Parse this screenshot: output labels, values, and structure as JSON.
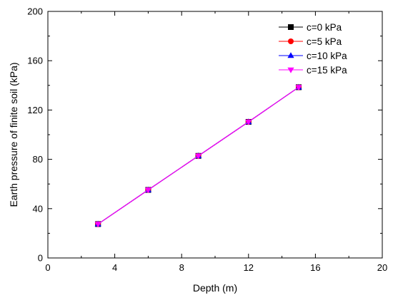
{
  "chart_data": {
    "type": "line",
    "xlabel": "Depth (m)",
    "ylabel": "Earth pressure of finite soil (kPa)",
    "xlim": [
      0,
      20
    ],
    "ylim": [
      0,
      200
    ],
    "xticks": [
      0,
      4,
      8,
      12,
      16,
      20
    ],
    "yticks": [
      0,
      40,
      80,
      120,
      160,
      200
    ],
    "grid": false,
    "legend_position": "top-right",
    "x": [
      3,
      6,
      9,
      12,
      15
    ],
    "series": [
      {
        "name": "c=0 kPa",
        "values": [
          27.5,
          55.2,
          82.8,
          110.4,
          138.5
        ],
        "color": "#000000",
        "marker": "square"
      },
      {
        "name": "c=5 kPa",
        "values": [
          27.5,
          55.2,
          82.8,
          110.4,
          138.5
        ],
        "color": "#ff0000",
        "marker": "circle"
      },
      {
        "name": "c=10 kPa",
        "values": [
          27.5,
          55.2,
          82.8,
          110.4,
          138.5
        ],
        "color": "#0000ff",
        "marker": "triangle-up"
      },
      {
        "name": "c=15 kPa",
        "values": [
          27.5,
          55.2,
          82.8,
          110.4,
          138.5
        ],
        "color": "#ff00ff",
        "marker": "triangle-down"
      }
    ]
  }
}
